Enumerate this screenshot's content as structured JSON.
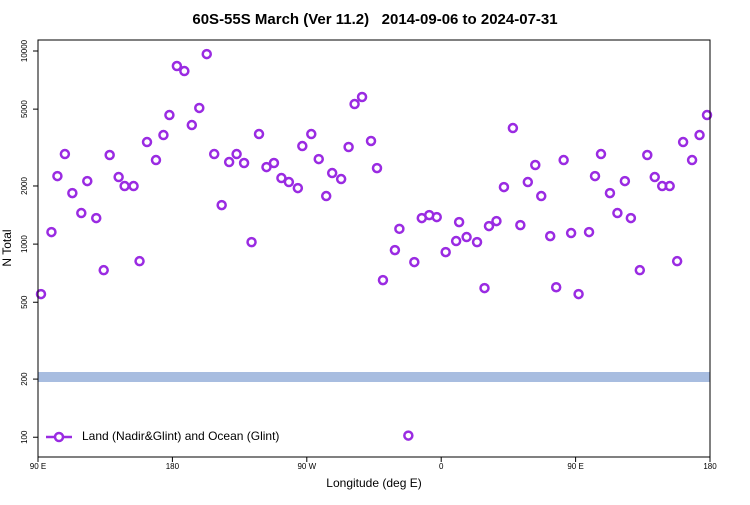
{
  "chart_data": {
    "type": "scatter",
    "title": "60S-55S March (Ver 11.2)   2014-09-06 to 2024-07-31",
    "x_label": "Longitude (deg E)",
    "y_label": "N Total",
    "log_y": true,
    "legend": "bottom-left",
    "xlim": [
      90,
      540
    ],
    "xticks": [
      {
        "value": 90,
        "label": "90 E"
      },
      {
        "value": 180,
        "label": "180"
      },
      {
        "value": 270,
        "label": "90 W"
      },
      {
        "value": 360,
        "label": "0"
      },
      {
        "value": 450,
        "label": "90 E"
      },
      {
        "value": 540,
        "label": "180"
      }
    ],
    "ylim": [
      79,
      11400
    ],
    "yticks": [
      100,
      200,
      500,
      1000,
      2000,
      5000,
      10000
    ],
    "series": [
      {
        "name": "Land (Nadir&Glint) and Ocean (Glint)",
        "color": "#9a2be2",
        "x": [
          92,
          99,
          103,
          108,
          113,
          119,
          123,
          129,
          134,
          138,
          144,
          148,
          154,
          158,
          163,
          169,
          174,
          178,
          183,
          188,
          193,
          198,
          203,
          208,
          213,
          218,
          223,
          228,
          233,
          238,
          243,
          248,
          253,
          258,
          264,
          267,
          273,
          278,
          283,
          287,
          293,
          298,
          302,
          307,
          313,
          317,
          321,
          329,
          332,
          338,
          342,
          347,
          352,
          357,
          363,
          370,
          372,
          377,
          384,
          389,
          392,
          397,
          402,
          408,
          413,
          418,
          423,
          427,
          433,
          437,
          442,
          447,
          452,
          459,
          463,
          467,
          473,
          478,
          483,
          487,
          493,
          498,
          503,
          508,
          513,
          518,
          522,
          528,
          533,
          538
        ],
        "values": [
          551,
          1154,
          2250,
          2927,
          1837,
          1448,
          2120,
          1364,
          733,
          2893,
          2225,
          1998,
          1998,
          816,
          3377,
          2724,
          3670,
          4660,
          8360,
          7875,
          4136,
          5070,
          9640,
          2927,
          1592,
          2660,
          2927,
          2630,
          1024,
          3715,
          2505,
          2630,
          2198,
          2096,
          1950,
          3220,
          3715,
          2756,
          1774,
          2333,
          2172,
          3183,
          5313,
          5778,
          3420,
          2475,
          651,
          931,
          1200,
          102,
          807,
          1364,
          1413,
          1380,
          909,
          1037,
          1300,
          1088,
          1024,
          592,
          1240,
          1316,
          1974,
          3990,
          1254,
          2096,
          2568,
          1774,
          1100,
          598,
          2724,
          1141,
          551,
          1154,
          2250,
          2927,
          1837,
          1448,
          2120,
          1364,
          733,
          2893,
          2225,
          1998,
          1998,
          816,
          3377,
          2724,
          3670,
          4660
        ]
      },
      {
        "color": "#a8bde0",
        "x": [
          90,
          540
        ],
        "values": [
          205,
          205
        ]
      }
    ]
  }
}
